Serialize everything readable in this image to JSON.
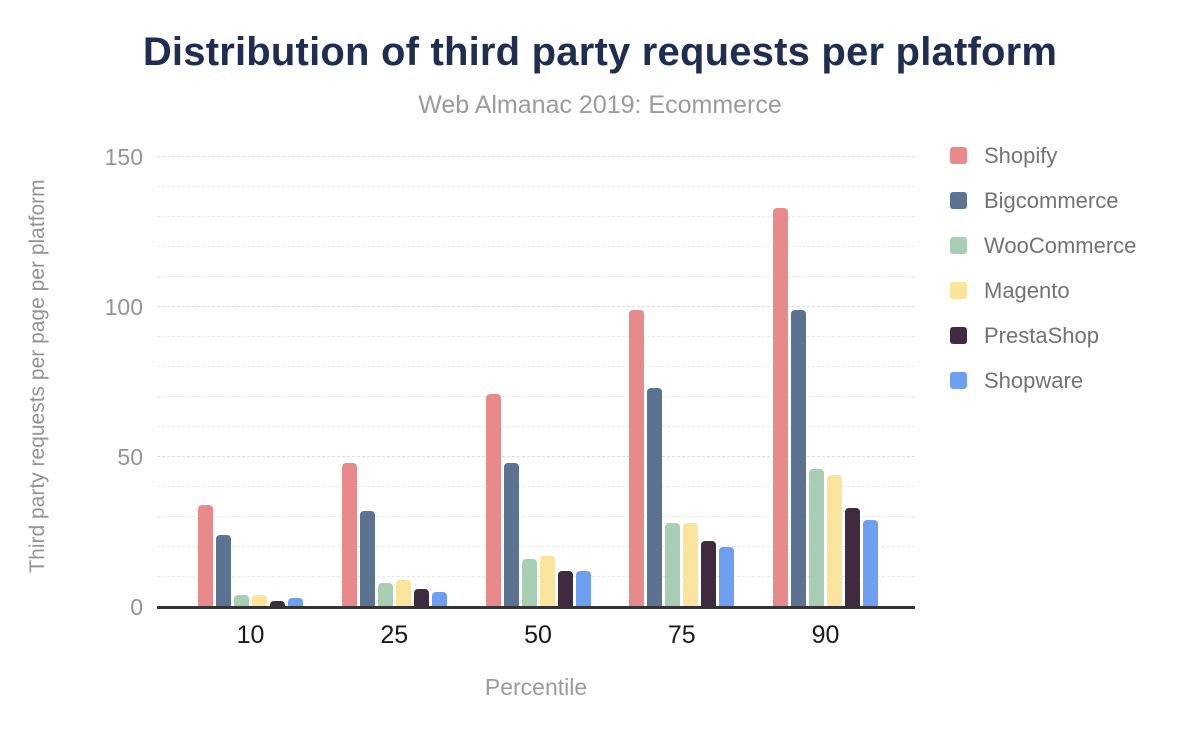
{
  "chart_data": {
    "type": "bar",
    "title": "Distribution of third party requests per platform",
    "subtitle": "Web Almanac 2019: Ecommerce",
    "xlabel": "Percentile",
    "ylabel": "Third party requests per page per platform",
    "categories": [
      "10",
      "25",
      "50",
      "75",
      "90"
    ],
    "series": [
      {
        "name": "Shopify",
        "color": "#e8898b",
        "values": [
          34,
          48,
          71,
          99,
          133
        ]
      },
      {
        "name": "Bigcommerce",
        "color": "#5b7292",
        "values": [
          24,
          32,
          48,
          73,
          99
        ]
      },
      {
        "name": "WooCommerce",
        "color": "#a8cfb4",
        "values": [
          4,
          8,
          16,
          28,
          46
        ]
      },
      {
        "name": "Magento",
        "color": "#fbe49c",
        "values": [
          4,
          9,
          17,
          28,
          44
        ]
      },
      {
        "name": "PrestaShop",
        "color": "#402b3e",
        "values": [
          2,
          6,
          12,
          22,
          33
        ]
      },
      {
        "name": "Shopware",
        "color": "#6f9ff0",
        "values": [
          3,
          5,
          12,
          20,
          29
        ]
      }
    ],
    "ylim": [
      0,
      154
    ],
    "yticks": [
      0,
      50,
      100,
      150
    ],
    "minor_gridline_step": 10,
    "grid": true,
    "legend_position": "right"
  },
  "colors": {
    "title": "#1f2d50",
    "subtitle": "#9b9b9b",
    "axis_labels": "#919499",
    "x_tick_labels": "#1a1a1a",
    "legend_text": "#70747a",
    "axis_line": "#333333",
    "background": "#ffffff"
  }
}
